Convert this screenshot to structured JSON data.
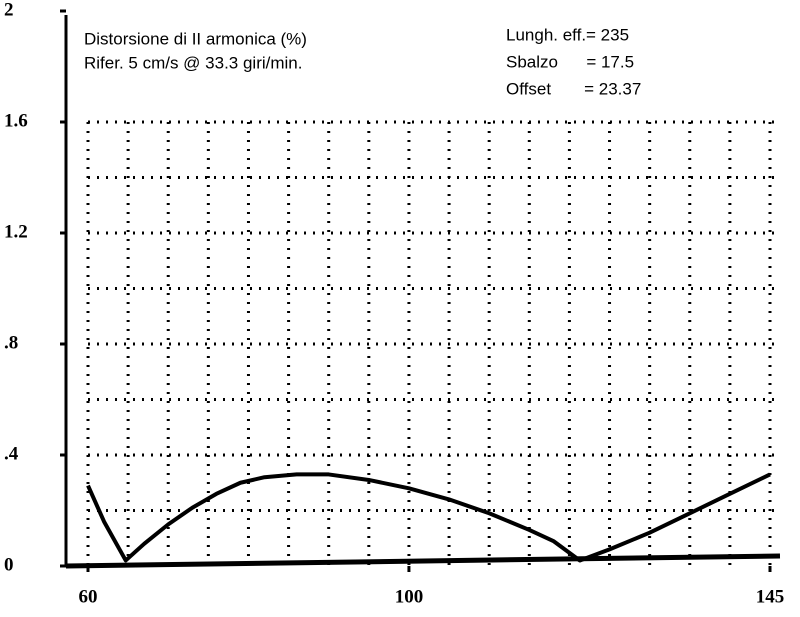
{
  "chart_data": {
    "type": "line",
    "title": "Distorsione di II armonica (%)",
    "subtitle": "Rifer. 5 cm/s @ 33.3 giri/min.",
    "annotations": [
      "Lungh. eff.= 235",
      "Sbalzo      = 17.5",
      "Offset       = 23.37"
    ],
    "x": [
      60,
      62,
      64.7,
      67,
      70,
      73,
      76,
      79,
      82,
      86,
      90,
      95,
      100,
      105,
      110,
      115,
      118,
      121.3,
      125,
      130,
      135,
      140,
      145
    ],
    "series": [
      {
        "color": "#000000",
        "values": [
          0.29,
          0.16,
          0.02,
          0.08,
          0.15,
          0.21,
          0.26,
          0.3,
          0.32,
          0.33,
          0.33,
          0.31,
          0.28,
          0.24,
          0.19,
          0.13,
          0.09,
          0.02,
          0.06,
          0.12,
          0.19,
          0.26,
          0.33
        ]
      }
    ],
    "xlim": [
      60,
      145
    ],
    "ylim": [
      0,
      2
    ],
    "xticks": [
      60,
      100,
      145
    ],
    "yticks": [
      0,
      {
        "value": 0.4,
        "label": ".4"
      },
      {
        "value": 0.8,
        "label": ".8"
      },
      1.2,
      1.6,
      2
    ],
    "xgrid": [
      60,
      65,
      70,
      75,
      80,
      85,
      90,
      95,
      100,
      105,
      110,
      115,
      120,
      125,
      130,
      135,
      140,
      145
    ],
    "ygrid": [
      0.2,
      0.4,
      0.6,
      0.8,
      1,
      1.2,
      1.4,
      1.6
    ],
    "grid": true
  }
}
